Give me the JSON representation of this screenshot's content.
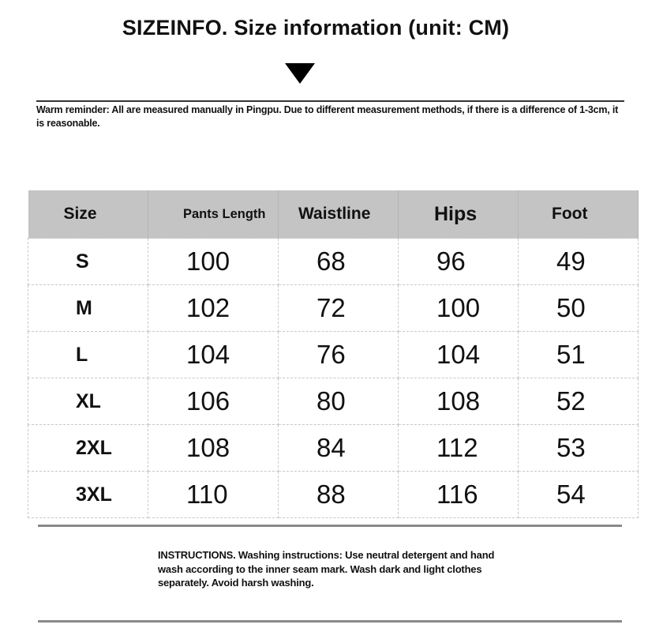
{
  "title": "SIZEINFO. Size information (unit: CM)",
  "reminder": "Warm reminder: All are measured manually in Pingpu. Due to different measurement methods, if there is a difference of 1-3cm, it is reasonable.",
  "table": {
    "headers": [
      "Size",
      "Pants Length",
      "Waistline",
      "Hips",
      "Foot"
    ],
    "rows": [
      [
        "S",
        "100",
        "68",
        "96",
        "49"
      ],
      [
        "M",
        "102",
        "72",
        "100",
        "50"
      ],
      [
        "L",
        "104",
        "76",
        "104",
        "51"
      ],
      [
        "XL",
        "106",
        "80",
        "108",
        "52"
      ],
      [
        "2XL",
        "108",
        "84",
        "112",
        "53"
      ],
      [
        "3XL",
        "110",
        "88",
        "116",
        "54"
      ]
    ]
  },
  "instructions": "INSTRUCTIONS. Washing instructions: Use neutral detergent and hand wash according to the inner seam mark. Wash dark and light clothes separately. Avoid harsh washing.",
  "colors": {
    "header_bg": "#c4c4c4",
    "text": "#111111"
  }
}
